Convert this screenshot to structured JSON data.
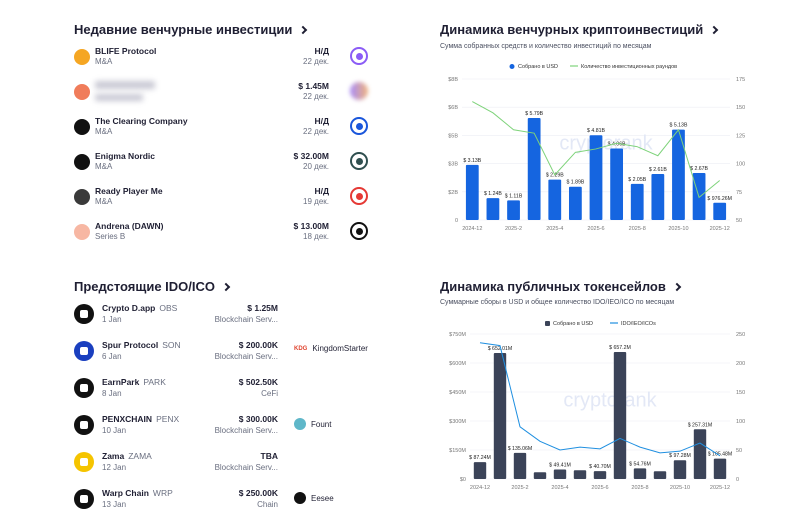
{
  "recent": {
    "title": "Недавние венчурные инвестиции",
    "items": [
      {
        "name": "BLIFE Protocol",
        "type": "M&A",
        "amount": "Н/Д",
        "date": "22 дек.",
        "logo_color": "#f5a623",
        "investor_color": "#8b5cf6"
      },
      {
        "name": "",
        "type": "",
        "amount": "$ 1.45M",
        "date": "22 дек.",
        "logo_color": "#f07c5a",
        "investor_color": "#a78bfa",
        "blurred": true
      },
      {
        "name": "The Clearing Company",
        "type": "M&A",
        "amount": "Н/Д",
        "date": "22 дек.",
        "logo_color": "#111111",
        "investor_color": "#1a56db"
      },
      {
        "name": "Enigma Nordic",
        "type": "M&A",
        "amount": "$ 32.00M",
        "date": "20 дек.",
        "logo_color": "#111111",
        "investor_color": "#2f4f4f"
      },
      {
        "name": "Ready Player Me",
        "type": "M&A",
        "amount": "Н/Д",
        "date": "19 дек.",
        "logo_color": "#3a3a3a",
        "investor_color": "#e53935"
      },
      {
        "name": "Andrena (DAWN)",
        "type": "Series B",
        "amount": "$ 13.00M",
        "date": "18 дек.",
        "logo_color": "#f7b7a3",
        "investor_color": "#111111"
      }
    ]
  },
  "ido": {
    "title": "Предстоящие IDO/ICO",
    "items": [
      {
        "name": "Crypto D.app",
        "ticker": "OBS",
        "date": "1 Jan",
        "amount": "$ 1.25M",
        "category": "Blockchain Serv...",
        "platform": "",
        "logo_color": "#111111"
      },
      {
        "name": "Spur Protocol",
        "ticker": "SON",
        "date": "6 Jan",
        "amount": "$ 200.00K",
        "category": "Blockchain Serv...",
        "platform": "KingdomStarter",
        "platform_badge": "KDG",
        "logo_color": "#1a3fbf"
      },
      {
        "name": "EarnPark",
        "ticker": "PARK",
        "date": "8 Jan",
        "amount": "$ 502.50K",
        "category": "CeFi",
        "platform": "",
        "logo_color": "#111111"
      },
      {
        "name": "PENXCHAIN",
        "ticker": "PENX",
        "date": "10 Jan",
        "amount": "$ 300.00K",
        "category": "Blockchain Serv...",
        "platform": "Fount",
        "logo_color": "#111111"
      },
      {
        "name": "Zama",
        "ticker": "ZAMA",
        "date": "12 Jan",
        "amount": "TBA",
        "category": "Blockchain Serv...",
        "platform": "",
        "logo_color": "#f5c400"
      },
      {
        "name": "Warp Chain",
        "ticker": "WRP",
        "date": "13 Jan",
        "amount": "$ 250.00K",
        "category": "Chain",
        "platform": "Eesee",
        "logo_color": "#111111"
      }
    ]
  },
  "venture_chart": {
    "title": "Динамика венчурных криптоинвестиций",
    "subtitle": "Сумма собранных средств и количество инвестиций по месяцам",
    "legend_bar": "Собрано в USD",
    "legend_line": "Количество инвестиционных раундов",
    "watermark": "cryptorank"
  },
  "token_chart": {
    "title": "Динамика публичных токенсейлов",
    "subtitle": "Суммарные сборы в USD и общее количество IDO/IEO/ICO по месяцам",
    "legend_bar": "Собрано в USD",
    "legend_line": "IDO/IEO/ICOs",
    "watermark": "cryptorank"
  },
  "chart_data": [
    {
      "type": "bar",
      "title": "Динамика венчурных криптоинвестиций",
      "categories": [
        "2024-12",
        "2025-1",
        "2025-2",
        "2025-3",
        "2025-4",
        "2025-5",
        "2025-6",
        "2025-7",
        "2025-8",
        "2025-9",
        "2025-10",
        "2025-11",
        "2025-12"
      ],
      "tick_labels": [
        "2024-12",
        "2025-2",
        "2025-4",
        "2025-6",
        "2025-8",
        "2025-10",
        "2025-12"
      ],
      "series": [
        {
          "name": "Собрано в USD",
          "axis": "left",
          "values": [
            3.13,
            1.24,
            1.11,
            5.79,
            2.29,
            1.89,
            4.81,
            4.06,
            2.05,
            2.61,
            5.13,
            2.67,
            0.976
          ]
        },
        {
          "name": "Количество инвестиционных раундов",
          "axis": "right",
          "type": "line",
          "values": [
            155,
            145,
            130,
            127,
            90,
            110,
            113,
            118,
            115,
            107,
            130,
            70,
            85
          ]
        }
      ],
      "data_labels": [
        "$ 3.13B",
        "$ 1.24B",
        "$ 1.11B",
        "$ 5.79B",
        "$ 2.29B",
        "$ 1.89B",
        "$ 4.81B",
        "$ 4.06B",
        "$ 2.05B",
        "$ 2.61B",
        "$ 5.13B",
        "$ 2.67B",
        "$ 976.26M"
      ],
      "left_ticks": [
        "0",
        "$2B",
        "$3B",
        "$5B",
        "$6B",
        "$8B"
      ],
      "left_tick_values": [
        0,
        1.6,
        3.2,
        4.8,
        6.4,
        8.0
      ],
      "right_ticks": [
        "50",
        "75",
        "100",
        "125",
        "150",
        "175"
      ],
      "ylim_left": [
        0,
        8
      ],
      "ylim_right": [
        50,
        175
      ]
    },
    {
      "type": "bar",
      "title": "Динамика публичных токенсейлов",
      "categories": [
        "2024-12",
        "2025-1",
        "2025-2",
        "2025-3",
        "2025-4",
        "2025-5",
        "2025-6",
        "2025-7",
        "2025-8",
        "2025-9",
        "2025-10",
        "2025-11",
        "2025-12"
      ],
      "tick_labels": [
        "2024-12",
        "2025-2",
        "2025-4",
        "2025-6",
        "2025-8",
        "2025-10",
        "2025-12"
      ],
      "series": [
        {
          "name": "Собрано в USD",
          "axis": "left",
          "values": [
            87.24,
            652.01,
            135.06,
            35,
            49.41,
            45,
            40.7,
            657.2,
            54.76,
            40,
            97.28,
            257.31,
            105.48
          ]
        },
        {
          "name": "IDO/IEO/ICOs",
          "axis": "right",
          "type": "line",
          "values": [
            235,
            230,
            90,
            65,
            50,
            55,
            52,
            70,
            55,
            45,
            48,
            62,
            40
          ]
        }
      ],
      "data_labels": [
        "$ 87.24M",
        "$ 652.01M",
        "$ 135.06M",
        "",
        "$ 49.41M",
        "",
        "$ 40.70M",
        "$ 657.2M",
        "$ 54.76M",
        "",
        "$ 97.28M",
        "$ 257.31M",
        "$ 105.48M"
      ],
      "left_ticks": [
        "$0",
        "$150M",
        "$300M",
        "$450M",
        "$600M",
        "$750M"
      ],
      "right_ticks": [
        "0",
        "50",
        "100",
        "150",
        "200",
        "250"
      ],
      "ylim_left": [
        0,
        750
      ],
      "ylim_right": [
        0,
        250
      ]
    }
  ]
}
